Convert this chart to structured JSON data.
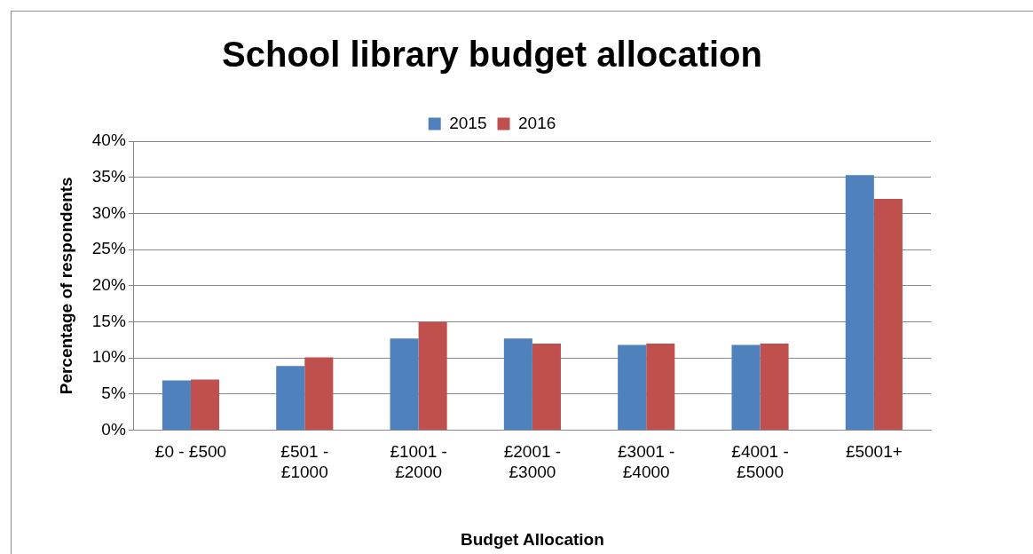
{
  "chart_data": {
    "type": "bar",
    "title": "School library budget allocation",
    "xlabel": "Budget Allocation",
    "ylabel": "Percentage of respondents",
    "categories": [
      "£0 - £500",
      "£501 - £1000",
      "£1001 - £2000",
      "£2001 - £3000",
      "£3001 - £4000",
      "£4001 - £5000",
      "£5001+"
    ],
    "series": [
      {
        "name": "2015",
        "color": "#4f81bd",
        "values": [
          6.9,
          8.9,
          12.7,
          12.7,
          11.8,
          11.8,
          35.3
        ]
      },
      {
        "name": "2016",
        "color": "#c0504d",
        "values": [
          7,
          10.1,
          15,
          12,
          12,
          12,
          32
        ]
      }
    ],
    "ylim": [
      0,
      40
    ],
    "yticks": [
      {
        "value": 0,
        "label": "0%"
      },
      {
        "value": 5,
        "label": "5%"
      },
      {
        "value": 10,
        "label": "10%"
      },
      {
        "value": 15,
        "label": "15%"
      },
      {
        "value": 20,
        "label": "20%"
      },
      {
        "value": 25,
        "label": "25%"
      },
      {
        "value": 30,
        "label": "30%"
      },
      {
        "value": 35,
        "label": "35%"
      },
      {
        "value": 40,
        "label": "40%"
      }
    ],
    "grid": "y",
    "legend": "top"
  }
}
